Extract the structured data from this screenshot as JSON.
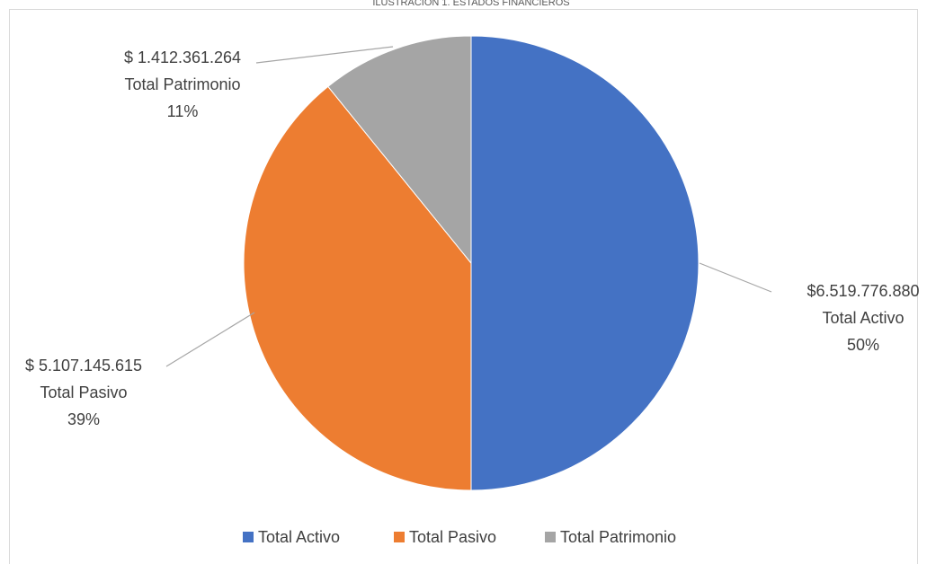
{
  "chart_data": {
    "type": "pie",
    "title": "ILUSTRACIÓN 1. ESTADOS FINANCIEROS",
    "categories": [
      "Total Activo",
      "Total Pasivo",
      "Total Patrimonio"
    ],
    "values": [
      6519776880,
      5107145615,
      1412361264
    ],
    "value_labels": [
      "$6.519.776.880",
      "$ 5.107.145.615",
      "$ 1.412.361.264"
    ],
    "percent_labels": [
      "50%",
      "39%",
      "11%"
    ],
    "colors": [
      "#4472c4",
      "#ed7d31",
      "#a5a5a5"
    ],
    "legend": "bottom"
  }
}
